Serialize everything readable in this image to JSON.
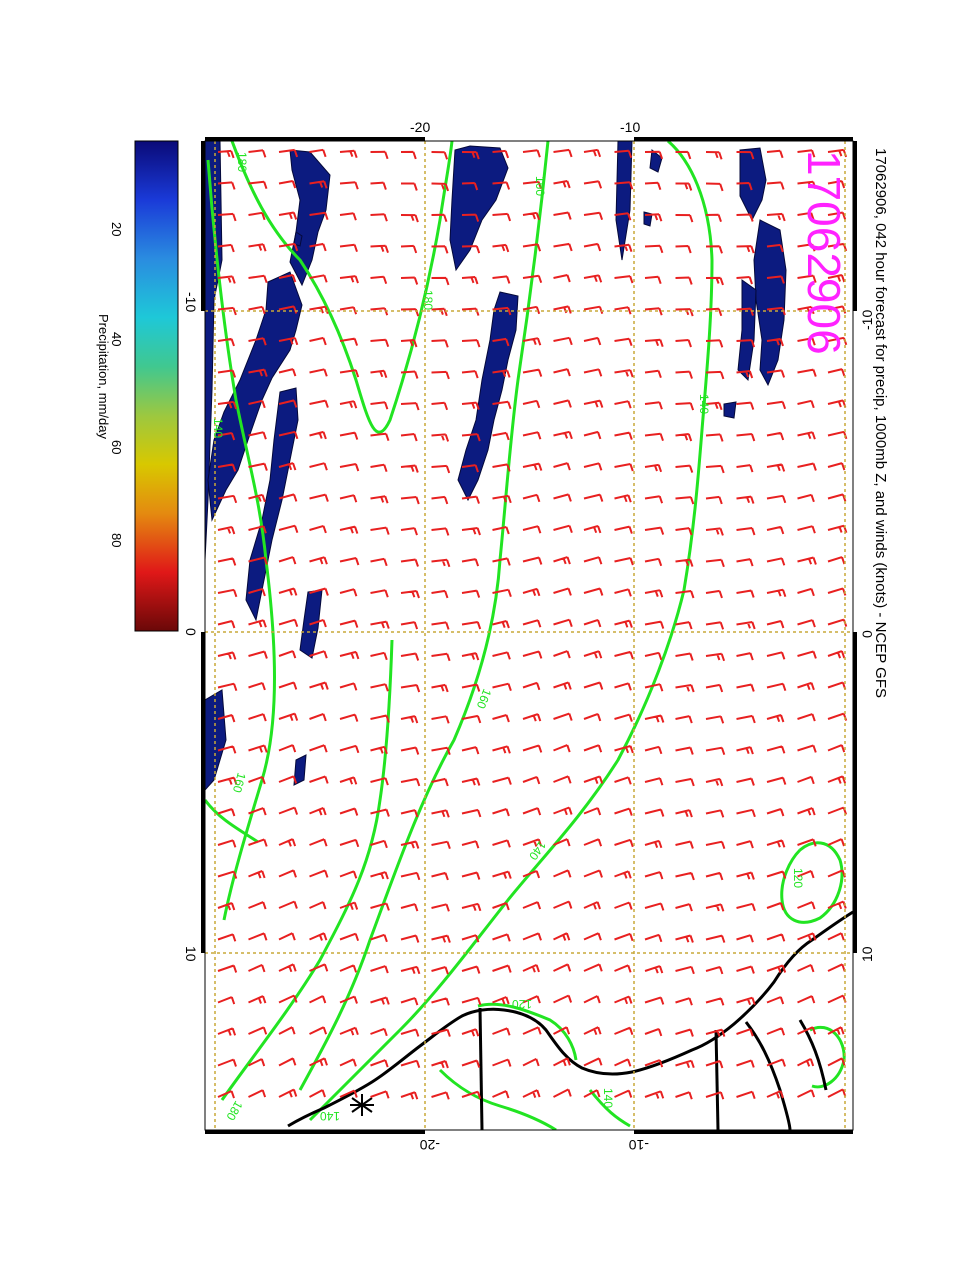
{
  "title": "17062906, 042 hour forecast for precip, 1000mb Z, and winds (knots) - NCEP GFS",
  "stamp": "17062906",
  "colorbar": {
    "label": "Precipitation, mm/day",
    "ticks": [
      "20",
      "40",
      "60",
      "80"
    ]
  },
  "axes": {
    "lon_ticks": [
      "-10",
      "0",
      "10"
    ],
    "lat_ticks": [
      "-20",
      "-10"
    ]
  },
  "contours": {
    "labels": [
      "180",
      "160",
      "140",
      "120"
    ]
  },
  "colors": {
    "precip": "#0c1b80",
    "contour": "#22e422",
    "barb": "#e82020",
    "grid": "#c8a838",
    "stamp": "#ff22ff",
    "coast": "#000000"
  }
}
